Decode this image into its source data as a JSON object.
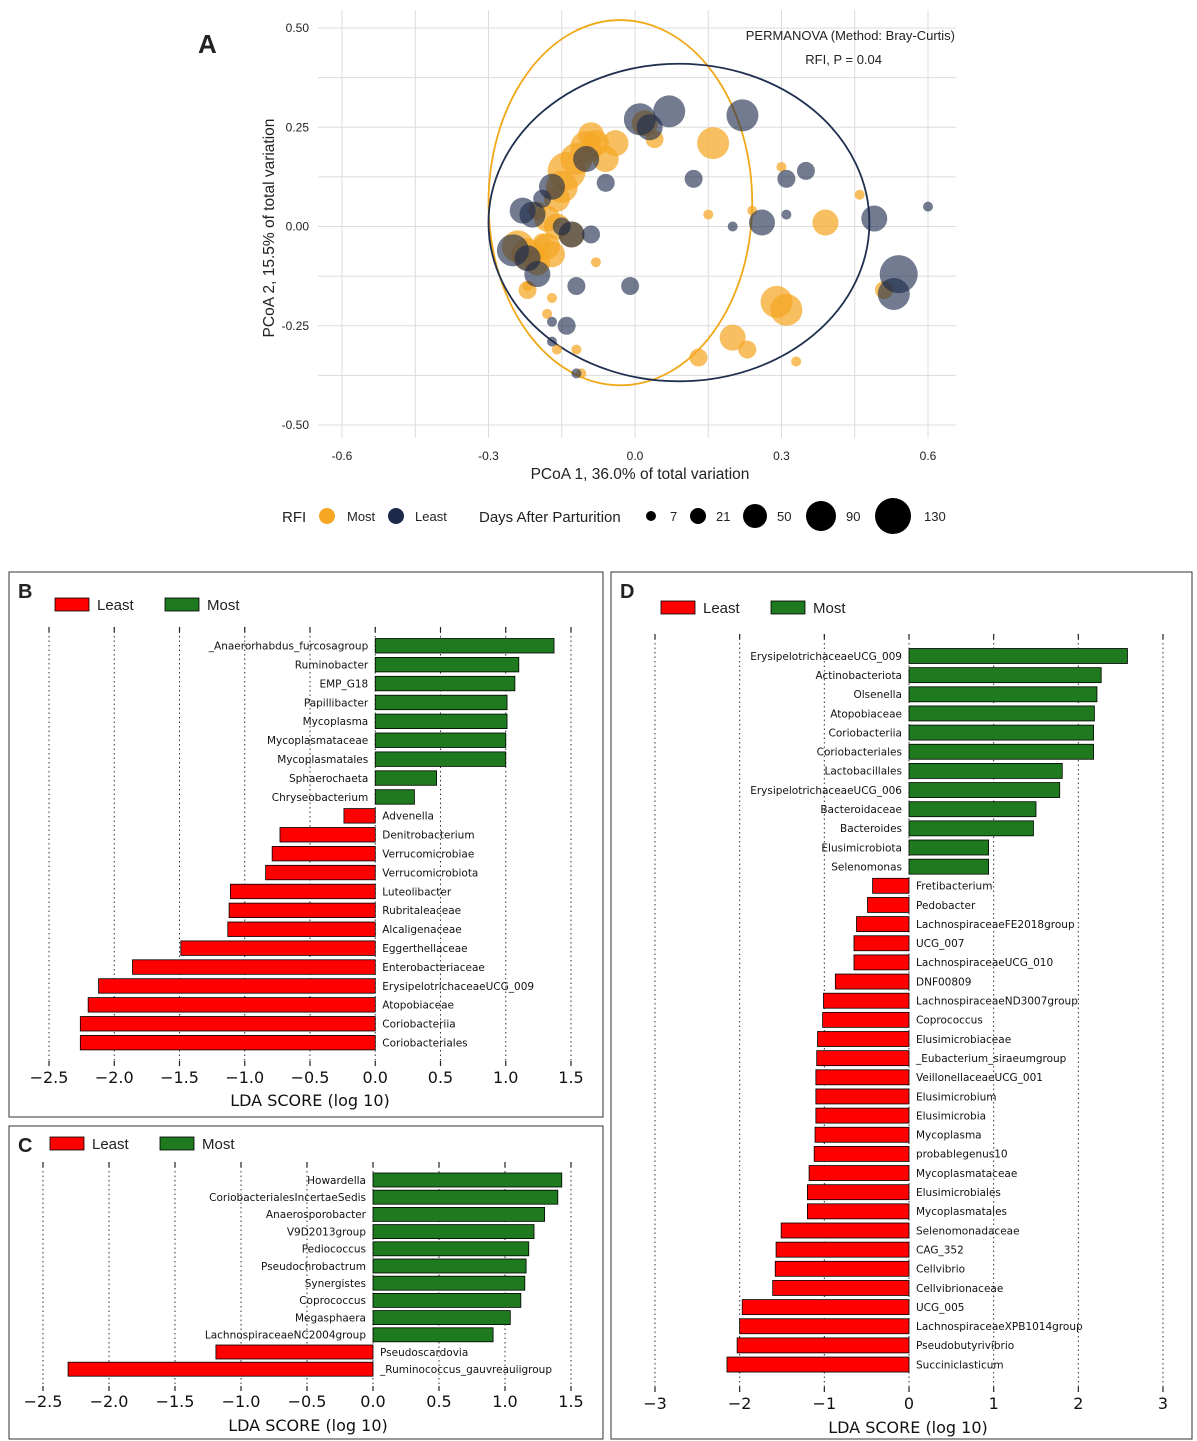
{
  "colors": {
    "most_dot": "#F5A623",
    "least_dot": "#1B2A4A",
    "ellipse_most": "#F0A818",
    "ellipse_least": "#1F2F4F",
    "bar_least": "#FF0000",
    "bar_most": "#1F7A1F"
  },
  "chart_data": [
    {
      "panel": "A",
      "type": "scatter",
      "xlabel": "PCoA 1, 36.0% of total variation",
      "ylabel": "PCoA 2, 15.5% of total variation",
      "xlim": [
        -0.6,
        0.6
      ],
      "ylim": [
        -0.5,
        0.5
      ],
      "xticks": [
        -0.6,
        -0.3,
        0.0,
        0.3,
        0.6
      ],
      "xtick_labels": [
        "-0.6",
        "-0.3",
        "0.0",
        "0.3",
        "0.6"
      ],
      "yticks": [
        0.5,
        0.25,
        0.0,
        -0.25,
        -0.5
      ],
      "ytick_labels": [
        "0.50",
        "0.25",
        "0.00",
        "-0.25",
        "-0.50"
      ],
      "annotation": [
        "PERMANOVA (Method: Bray-Curtis)",
        "RFI, P = 0.04"
      ],
      "legend": {
        "rfi_title": "RFI",
        "rfi_most": "Most",
        "rfi_least": "Least",
        "size_title": "Days After Parturition",
        "sizes": [
          "7",
          "21",
          "50",
          "90",
          "130"
        ]
      },
      "ellipses": [
        {
          "group": "Most",
          "cx": -0.03,
          "cy": 0.06,
          "rx": 0.27,
          "ry": 0.46
        },
        {
          "group": "Least",
          "cx": 0.09,
          "cy": 0.01,
          "rx": 0.39,
          "ry": 0.4
        }
      ],
      "points": [
        {
          "x": -0.24,
          "y": -0.05,
          "d": 90,
          "g": "Most"
        },
        {
          "x": -0.22,
          "y": -0.07,
          "d": 90,
          "g": "Most"
        },
        {
          "x": -0.2,
          "y": -0.09,
          "d": 50,
          "g": "Most"
        },
        {
          "x": -0.18,
          "y": -0.05,
          "d": 50,
          "g": "Most"
        },
        {
          "x": -0.17,
          "y": -0.07,
          "d": 50,
          "g": "Most"
        },
        {
          "x": -0.15,
          "y": 0.1,
          "d": 90,
          "g": "Most"
        },
        {
          "x": -0.14,
          "y": 0.14,
          "d": 130,
          "g": "Most"
        },
        {
          "x": -0.12,
          "y": 0.17,
          "d": 90,
          "g": "Most"
        },
        {
          "x": -0.1,
          "y": 0.2,
          "d": 90,
          "g": "Most"
        },
        {
          "x": -0.09,
          "y": 0.23,
          "d": 50,
          "g": "Most"
        },
        {
          "x": -0.08,
          "y": 0.21,
          "d": 50,
          "g": "Most"
        },
        {
          "x": -0.06,
          "y": 0.17,
          "d": 50,
          "g": "Most"
        },
        {
          "x": -0.04,
          "y": 0.21,
          "d": 50,
          "g": "Most"
        },
        {
          "x": 0.02,
          "y": 0.26,
          "d": 50,
          "g": "Most"
        },
        {
          "x": 0.04,
          "y": 0.22,
          "d": 21,
          "g": "Most"
        },
        {
          "x": 0.16,
          "y": 0.21,
          "d": 90,
          "g": "Most"
        },
        {
          "x": -0.2,
          "y": 0.04,
          "d": 21,
          "g": "Most"
        },
        {
          "x": -0.18,
          "y": 0.02,
          "d": 50,
          "g": "Most"
        },
        {
          "x": -0.16,
          "y": 0.0,
          "d": 50,
          "g": "Most"
        },
        {
          "x": -0.13,
          "y": -0.02,
          "d": 50,
          "g": "Most"
        },
        {
          "x": -0.19,
          "y": -0.04,
          "d": 21,
          "g": "Most"
        },
        {
          "x": -0.22,
          "y": -0.15,
          "d": 7,
          "g": "Most"
        },
        {
          "x": -0.18,
          "y": -0.22,
          "d": 7,
          "g": "Most"
        },
        {
          "x": -0.17,
          "y": -0.18,
          "d": 7,
          "g": "Most"
        },
        {
          "x": -0.16,
          "y": -0.31,
          "d": 7,
          "g": "Most"
        },
        {
          "x": -0.12,
          "y": -0.31,
          "d": 7,
          "g": "Most"
        },
        {
          "x": -0.11,
          "y": -0.37,
          "d": 7,
          "g": "Most"
        },
        {
          "x": -0.08,
          "y": -0.09,
          "d": 7,
          "g": "Most"
        },
        {
          "x": 0.15,
          "y": 0.03,
          "d": 7,
          "g": "Most"
        },
        {
          "x": 0.24,
          "y": 0.04,
          "d": 7,
          "g": "Most"
        },
        {
          "x": 0.3,
          "y": 0.15,
          "d": 7,
          "g": "Most"
        },
        {
          "x": 0.39,
          "y": 0.01,
          "d": 50,
          "g": "Most"
        },
        {
          "x": 0.46,
          "y": 0.08,
          "d": 7,
          "g": "Most"
        },
        {
          "x": 0.29,
          "y": -0.19,
          "d": 90,
          "g": "Most"
        },
        {
          "x": 0.31,
          "y": -0.21,
          "d": 90,
          "g": "Most"
        },
        {
          "x": 0.2,
          "y": -0.28,
          "d": 50,
          "g": "Most"
        },
        {
          "x": 0.13,
          "y": -0.33,
          "d": 21,
          "g": "Most"
        },
        {
          "x": 0.23,
          "y": -0.31,
          "d": 21,
          "g": "Most"
        },
        {
          "x": 0.33,
          "y": -0.34,
          "d": 7,
          "g": "Most"
        },
        {
          "x": 0.51,
          "y": -0.16,
          "d": 21,
          "g": "Most"
        },
        {
          "x": -0.22,
          "y": -0.16,
          "d": 21,
          "g": "Most"
        },
        {
          "x": -0.16,
          "y": 0.07,
          "d": 50,
          "g": "Most"
        },
        {
          "x": -0.25,
          "y": -0.06,
          "d": 90,
          "g": "Least"
        },
        {
          "x": -0.23,
          "y": 0.04,
          "d": 50,
          "g": "Least"
        },
        {
          "x": -0.21,
          "y": 0.03,
          "d": 50,
          "g": "Least"
        },
        {
          "x": -0.19,
          "y": 0.07,
          "d": 21,
          "g": "Least"
        },
        {
          "x": -0.17,
          "y": 0.1,
          "d": 50,
          "g": "Least"
        },
        {
          "x": -0.15,
          "y": 0.0,
          "d": 21,
          "g": "Least"
        },
        {
          "x": -0.13,
          "y": -0.02,
          "d": 50,
          "g": "Least"
        },
        {
          "x": -0.1,
          "y": 0.17,
          "d": 50,
          "g": "Least"
        },
        {
          "x": -0.06,
          "y": 0.11,
          "d": 21,
          "g": "Least"
        },
        {
          "x": 0.01,
          "y": 0.27,
          "d": 90,
          "g": "Least"
        },
        {
          "x": 0.03,
          "y": 0.25,
          "d": 50,
          "g": "Least"
        },
        {
          "x": 0.07,
          "y": 0.29,
          "d": 90,
          "g": "Least"
        },
        {
          "x": 0.22,
          "y": 0.28,
          "d": 90,
          "g": "Least"
        },
        {
          "x": 0.12,
          "y": 0.12,
          "d": 21,
          "g": "Least"
        },
        {
          "x": 0.31,
          "y": 0.12,
          "d": 21,
          "g": "Least"
        },
        {
          "x": 0.35,
          "y": 0.14,
          "d": 21,
          "g": "Least"
        },
        {
          "x": 0.26,
          "y": 0.01,
          "d": 50,
          "g": "Least"
        },
        {
          "x": 0.31,
          "y": 0.03,
          "d": 7,
          "g": "Least"
        },
        {
          "x": 0.2,
          "y": 0.0,
          "d": 7,
          "g": "Least"
        },
        {
          "x": 0.49,
          "y": 0.02,
          "d": 50,
          "g": "Least"
        },
        {
          "x": 0.6,
          "y": 0.05,
          "d": 7,
          "g": "Least"
        },
        {
          "x": 0.54,
          "y": -0.12,
          "d": 130,
          "g": "Least"
        },
        {
          "x": 0.53,
          "y": -0.17,
          "d": 90,
          "g": "Least"
        },
        {
          "x": -0.2,
          "y": -0.12,
          "d": 50,
          "g": "Least"
        },
        {
          "x": -0.12,
          "y": -0.15,
          "d": 21,
          "g": "Least"
        },
        {
          "x": -0.01,
          "y": -0.15,
          "d": 21,
          "g": "Least"
        },
        {
          "x": -0.14,
          "y": -0.25,
          "d": 21,
          "g": "Least"
        },
        {
          "x": -0.17,
          "y": -0.24,
          "d": 7,
          "g": "Least"
        },
        {
          "x": -0.17,
          "y": -0.29,
          "d": 7,
          "g": "Least"
        },
        {
          "x": -0.12,
          "y": -0.37,
          "d": 7,
          "g": "Least"
        },
        {
          "x": -0.09,
          "y": -0.02,
          "d": 21,
          "g": "Least"
        },
        {
          "x": -0.22,
          "y": -0.08,
          "d": 50,
          "g": "Least"
        }
      ]
    },
    {
      "panel": "B",
      "type": "bar",
      "orientation": "horizontal",
      "xlabel": "LDA SCORE (log 10)",
      "xlim": [
        -2.5,
        1.5
      ],
      "xticks": [
        -2.5,
        -2.0,
        -1.5,
        -1.0,
        -0.5,
        0.0,
        0.5,
        1.0,
        1.5
      ],
      "xtick_labels": [
        "−2.5",
        "−2.0",
        "−1.5",
        "−1.0",
        "−0.5",
        "0.0",
        "0.5",
        "1.0",
        "1.5"
      ],
      "legend": [
        "Least",
        "Most"
      ],
      "categories": [
        "_Anaerorhabdus_furcosagroup",
        "Ruminobacter",
        "EMP_G18",
        "Papillibacter",
        "Mycoplasma",
        "Mycoplasmataceae",
        "Mycoplasmatales",
        "Sphaerochaeta",
        "Chryseobacterium",
        "Advenella",
        "Denitrobacterium",
        "Verrucomicrobiae",
        "Verrucomicrobiota",
        "Luteolibacter",
        "Rubritaleaceae",
        "Alcaligenaceae",
        "Eggerthellaceae",
        "Enterobacteriaceae",
        "ErysipelotrichaceaeUCG_009",
        "Atopobiaceae",
        "Coriobacteriia",
        "Coriobacteriales"
      ],
      "values": [
        1.37,
        1.1,
        1.07,
        1.01,
        1.01,
        1.0,
        1.0,
        0.47,
        0.3,
        -0.24,
        -0.73,
        -0.79,
        -0.84,
        -1.11,
        -1.12,
        -1.13,
        -1.49,
        -1.86,
        -2.12,
        -2.2,
        -2.26,
        -2.26
      ]
    },
    {
      "panel": "C",
      "type": "bar",
      "orientation": "horizontal",
      "xlabel": "LDA SCORE (log 10)",
      "xlim": [
        -2.5,
        1.5
      ],
      "xticks": [
        -2.5,
        -2.0,
        -1.5,
        -1.0,
        -0.5,
        0.0,
        0.5,
        1.0,
        1.5
      ],
      "xtick_labels": [
        "−2.5",
        "−2.0",
        "−1.5",
        "−1.0",
        "−0.5",
        "0.0",
        "0.5",
        "1.0",
        "1.5"
      ],
      "legend": [
        "Least",
        "Most"
      ],
      "categories": [
        "Howardella",
        "CoriobacterialesIncertaeSedis",
        "Anaerosporobacter",
        "V9D2013group",
        "Pediococcus",
        "Pseudochrobactrum",
        "Synergistes",
        "Coprococcus",
        "Megasphaera",
        "LachnospiraceaeNC2004group",
        "Pseudoscardovia",
        "_Ruminococcus_gauvreauiigroup"
      ],
      "values": [
        1.43,
        1.4,
        1.3,
        1.22,
        1.18,
        1.16,
        1.15,
        1.12,
        1.04,
        0.91,
        -1.19,
        -2.31
      ]
    },
    {
      "panel": "D",
      "type": "bar",
      "orientation": "horizontal",
      "xlabel": "LDA SCORE (log 10)",
      "xlim": [
        -3,
        3
      ],
      "xticks": [
        -3,
        -2,
        -1,
        0,
        1,
        2,
        3
      ],
      "xtick_labels": [
        "−3",
        "−2",
        "−1",
        "0",
        "1",
        "2",
        "3"
      ],
      "legend": [
        "Least",
        "Most"
      ],
      "categories": [
        "ErysipelotrichaceaeUCG_009",
        "Actinobacteriota",
        "Olsenella",
        "Atopobiaceae",
        "Coriobacteriia",
        "Coriobacteriales",
        "Lactobacillales",
        "ErysipelotrichaceaeUCG_006",
        "Bacteroidaceae",
        "Bacteroides",
        "Elusimicrobiota",
        "Selenomonas",
        "Fretibacterium",
        "Pedobacter",
        "LachnospiraceaeFE2018group",
        "UCG_007",
        "LachnospiraceaeUCG_010",
        "DNF00809",
        "LachnospiraceaeND3007group",
        "Coprococcus",
        "Elusimicrobiaceae",
        "_Eubacterium_siraeumgroup",
        "VeillonellaceaeUCG_001",
        "Elusimicrobium",
        "Elusimicrobia",
        "Mycoplasma",
        "probablegenus10",
        "Mycoplasmataceae",
        "Elusimicrobiales",
        "Mycoplasmatales",
        "Selenomonadaceae",
        "CAG_352",
        "Cellvibrio",
        "Cellvibrionaceae",
        "UCG_005",
        "LachnospiraceaeXPB1014group",
        "Pseudobutyrivibrio",
        "Succiniclasticum"
      ],
      "values": [
        2.58,
        2.27,
        2.22,
        2.19,
        2.18,
        2.18,
        1.81,
        1.78,
        1.5,
        1.47,
        0.94,
        0.94,
        -0.43,
        -0.49,
        -0.62,
        -0.65,
        -0.65,
        -0.87,
        -1.01,
        -1.02,
        -1.08,
        -1.09,
        -1.1,
        -1.1,
        -1.1,
        -1.11,
        -1.12,
        -1.18,
        -1.2,
        -1.2,
        -1.51,
        -1.57,
        -1.58,
        -1.61,
        -1.97,
        -2.0,
        -2.03,
        -2.15
      ]
    }
  ],
  "panels": {
    "a_letter": "A",
    "b_letter": "B",
    "c_letter": "C",
    "d_letter": "D"
  }
}
